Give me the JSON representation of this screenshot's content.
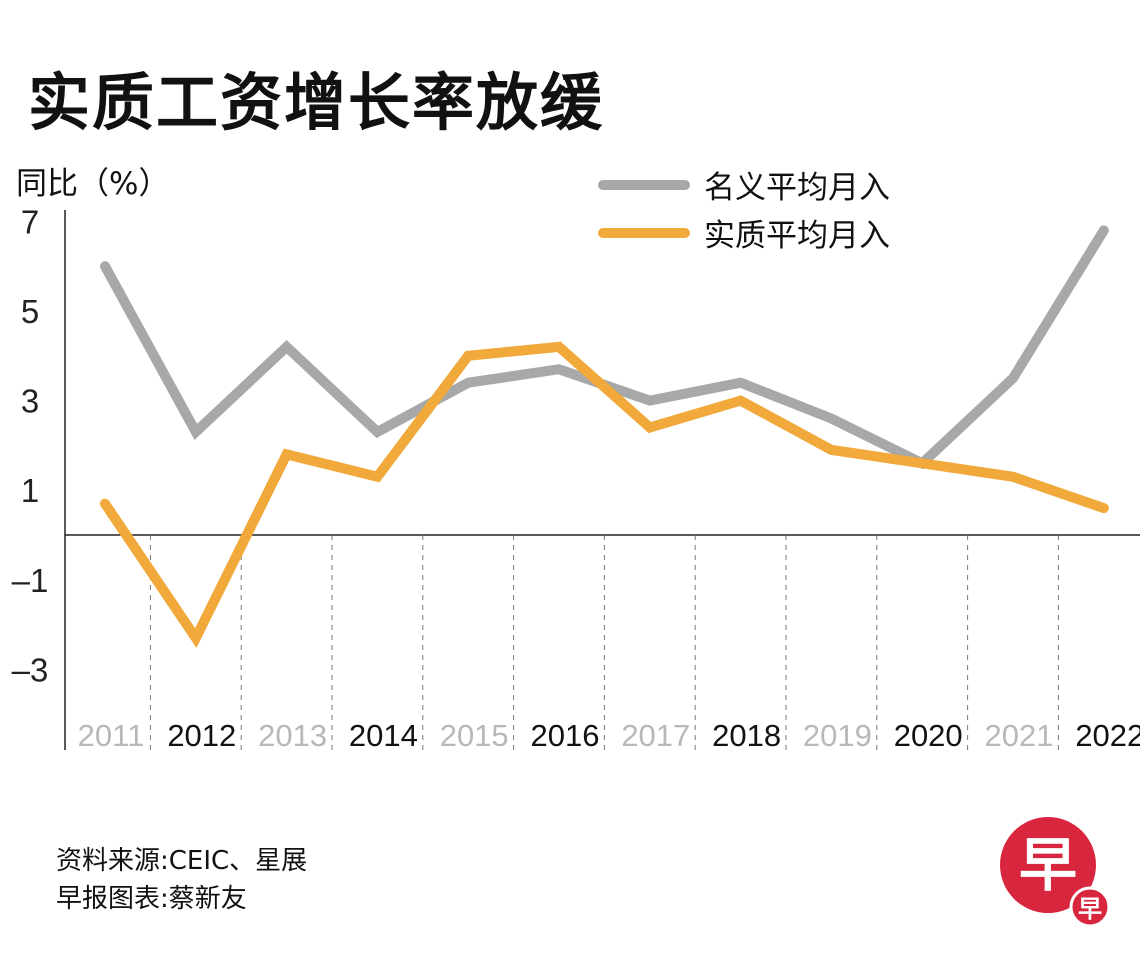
{
  "title": "实质工资增长率放缓",
  "source_lines": [
    "资料来源:CEIC、星展",
    "早报图表:蔡新友"
  ],
  "logo_text": "早",
  "chart_data": {
    "type": "line",
    "title": "实质工资增长率放缓",
    "ylabel": "同比（%）",
    "xlabel": "",
    "categories": [
      "2011",
      "2012",
      "2013",
      "2014",
      "2015",
      "2016",
      "2017",
      "2018",
      "2019",
      "2020",
      "2021",
      "2022"
    ],
    "yticks": [
      "7",
      "5",
      "3",
      "1",
      "–1",
      "–3"
    ],
    "ytick_values": [
      7,
      5,
      3,
      1,
      -1,
      -3
    ],
    "ylim": [
      -4.7,
      7.3
    ],
    "legend_position": "top-right",
    "grid": "dashed vertical separators below zero",
    "series": [
      {
        "name": "名义平均月入",
        "color": "#a7a8aa",
        "values": [
          6.0,
          2.3,
          4.2,
          2.3,
          3.4,
          3.7,
          3.0,
          3.4,
          2.6,
          1.6,
          3.5,
          6.8
        ]
      },
      {
        "name": "实质平均月入",
        "color": "#f0a93a",
        "values": [
          0.7,
          -2.3,
          1.8,
          1.3,
          4.0,
          4.2,
          2.4,
          3.0,
          1.9,
          1.6,
          1.3,
          0.6
        ]
      }
    ]
  }
}
